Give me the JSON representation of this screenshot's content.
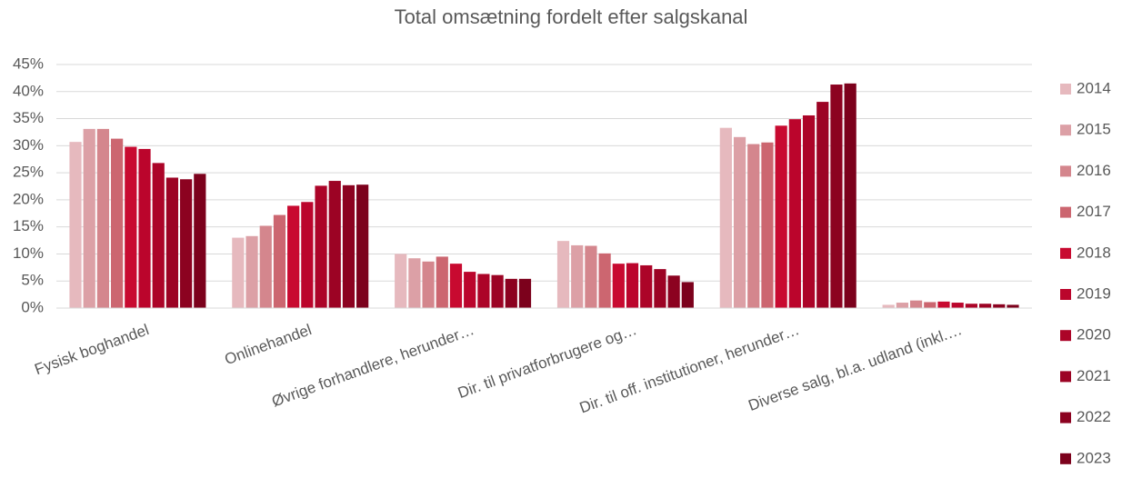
{
  "chart_data": {
    "type": "bar",
    "title": "Total omsætning fordelt efter salgskanal",
    "categories": [
      "Fysisk boghandel",
      "Onlinehandel",
      "Øvrige forhandlere, herunder…",
      "Dir. til privatforbrugere og…",
      "Dir. til off. institutioner, herunder…",
      "Diverse salg, bl.a. udland (inkl.…"
    ],
    "series": [
      {
        "name": "2014",
        "color": "#e6b9be",
        "values": [
          30.7,
          13.0,
          10.0,
          12.4,
          33.3,
          0.6
        ]
      },
      {
        "name": "2015",
        "color": "#dca0a6",
        "values": [
          33.1,
          13.3,
          9.2,
          11.6,
          31.6,
          1.0
        ]
      },
      {
        "name": "2016",
        "color": "#d4868d",
        "values": [
          33.1,
          15.2,
          8.6,
          11.5,
          30.3,
          1.4
        ]
      },
      {
        "name": "2017",
        "color": "#cc6670",
        "values": [
          31.3,
          17.2,
          9.5,
          10.1,
          30.6,
          1.1
        ]
      },
      {
        "name": "2018",
        "color": "#c80a30",
        "values": [
          29.8,
          18.9,
          8.2,
          8.2,
          33.7,
          1.2
        ]
      },
      {
        "name": "2019",
        "color": "#bb052c",
        "values": [
          29.4,
          19.6,
          6.7,
          8.3,
          34.9,
          1.0
        ]
      },
      {
        "name": "2020",
        "color": "#ac0428",
        "values": [
          26.8,
          22.6,
          6.3,
          7.9,
          35.6,
          0.8
        ]
      },
      {
        "name": "2021",
        "color": "#9c0324",
        "values": [
          24.1,
          23.5,
          6.1,
          7.2,
          38.1,
          0.8
        ]
      },
      {
        "name": "2022",
        "color": "#8c0220",
        "values": [
          23.8,
          22.7,
          5.4,
          6.0,
          41.3,
          0.7
        ]
      },
      {
        "name": "2023",
        "color": "#7c011c",
        "values": [
          24.8,
          22.8,
          5.4,
          4.8,
          41.5,
          0.6
        ]
      }
    ],
    "ylim": [
      0,
      45
    ],
    "yticks": [
      {
        "value": 0,
        "label": "0%"
      },
      {
        "value": 5,
        "label": "5%"
      },
      {
        "value": 10,
        "label": "10%"
      },
      {
        "value": 15,
        "label": "15%"
      },
      {
        "value": 20,
        "label": "20%"
      },
      {
        "value": 25,
        "label": "25%"
      },
      {
        "value": 30,
        "label": "30%"
      },
      {
        "value": 35,
        "label": "35%"
      },
      {
        "value": 40,
        "label": "40%"
      },
      {
        "value": 45,
        "label": "45%"
      }
    ],
    "grid": true,
    "legend": "right"
  }
}
